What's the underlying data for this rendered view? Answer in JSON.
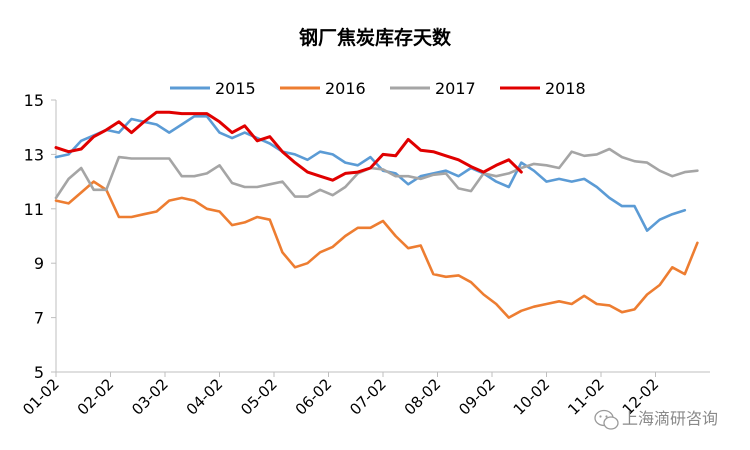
{
  "chart_data": {
    "type": "line",
    "title": "钢厂焦炭库存天数",
    "xlabel": "",
    "ylabel": "",
    "ylim": [
      5,
      15
    ],
    "yticks": [
      "5",
      "7",
      "9",
      "11",
      "13",
      "15"
    ],
    "xticks": [
      "01-02",
      "02-02",
      "03-02",
      "04-02",
      "05-02",
      "06-02",
      "07-02",
      "08-02",
      "09-02",
      "10-02",
      "11-02",
      "12-02"
    ],
    "grid": false,
    "legend_position": "top",
    "series": [
      {
        "name": "2015",
        "color": "#5b9bd5",
        "values": [
          12.9,
          13.0,
          13.5,
          13.7,
          13.9,
          13.8,
          14.3,
          14.2,
          14.1,
          13.8,
          14.1,
          14.4,
          14.4,
          13.8,
          13.6,
          13.8,
          13.6,
          13.4,
          13.1,
          13.0,
          12.8,
          13.1,
          13.0,
          12.7,
          12.6,
          12.9,
          12.4,
          12.3,
          11.9,
          12.2,
          12.3,
          12.4,
          12.2,
          12.5,
          12.3,
          12.0,
          11.8,
          12.7,
          12.4,
          12.0,
          12.1,
          12.0,
          12.1,
          11.8,
          11.4,
          11.1,
          11.1,
          10.2,
          10.6,
          10.8,
          10.95
        ]
      },
      {
        "name": "2016",
        "color": "#ed7d31",
        "values": [
          11.3,
          11.2,
          11.6,
          12.0,
          11.7,
          10.7,
          10.7,
          10.8,
          10.9,
          11.3,
          11.4,
          11.3,
          11.0,
          10.9,
          10.4,
          10.5,
          10.7,
          10.6,
          9.4,
          8.85,
          9.0,
          9.4,
          9.6,
          10.0,
          10.3,
          10.3,
          10.55,
          10.0,
          9.55,
          9.65,
          8.6,
          8.5,
          8.55,
          8.3,
          7.85,
          7.5,
          7.0,
          7.25,
          7.4,
          7.5,
          7.6,
          7.5,
          7.8,
          7.5,
          7.45,
          7.2,
          7.3,
          7.85,
          8.2,
          8.85,
          8.6,
          9.75
        ]
      },
      {
        "name": "2017",
        "color": "#a5a5a5",
        "values": [
          11.4,
          12.1,
          12.5,
          11.7,
          11.7,
          12.9,
          12.85,
          12.85,
          12.85,
          12.85,
          12.2,
          12.2,
          12.3,
          12.6,
          11.95,
          11.8,
          11.8,
          11.9,
          12.0,
          11.45,
          11.45,
          11.7,
          11.5,
          11.8,
          12.3,
          12.5,
          12.45,
          12.2,
          12.2,
          12.1,
          12.25,
          12.3,
          11.75,
          11.65,
          12.3,
          12.2,
          12.3,
          12.5,
          12.65,
          12.6,
          12.5,
          13.1,
          12.95,
          13.0,
          13.2,
          12.9,
          12.75,
          12.7,
          12.4,
          12.2,
          12.35,
          12.4
        ]
      },
      {
        "name": "2018",
        "color": "#e00000",
        "values": [
          13.25,
          13.1,
          13.2,
          13.65,
          13.9,
          14.2,
          13.8,
          14.2,
          14.55,
          14.55,
          14.5,
          14.5,
          14.5,
          14.2,
          13.8,
          14.05,
          13.5,
          13.65,
          13.1,
          12.7,
          12.35,
          12.2,
          12.05,
          12.3,
          12.35,
          12.5,
          13.0,
          12.95,
          13.55,
          13.15,
          13.1,
          12.95,
          12.8,
          12.55,
          12.35,
          12.6,
          12.8,
          12.35
        ]
      }
    ],
    "watermark": "上海滴研咨询"
  }
}
